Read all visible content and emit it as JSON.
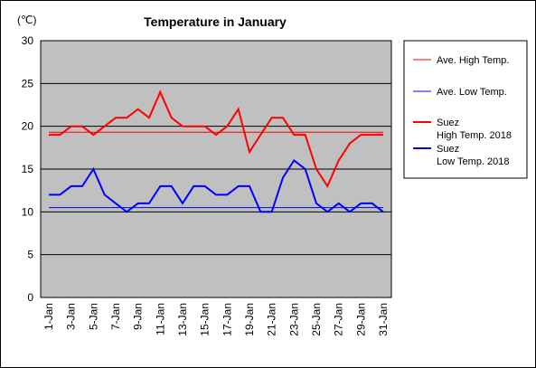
{
  "chart_data": {
    "type": "line",
    "title": "Temperature in January",
    "unit_label": "(℃)",
    "ylim": [
      0,
      30
    ],
    "yticks": [
      0,
      5,
      10,
      15,
      20,
      25,
      30
    ],
    "grid": "horizontal",
    "legend_position": "right",
    "x": [
      "1-Jan",
      "2-Jan",
      "3-Jan",
      "4-Jan",
      "5-Jan",
      "6-Jan",
      "7-Jan",
      "8-Jan",
      "9-Jan",
      "10-Jan",
      "11-Jan",
      "12-Jan",
      "13-Jan",
      "14-Jan",
      "15-Jan",
      "16-Jan",
      "17-Jan",
      "18-Jan",
      "19-Jan",
      "20-Jan",
      "21-Jan",
      "22-Jan",
      "23-Jan",
      "24-Jan",
      "25-Jan",
      "26-Jan",
      "27-Jan",
      "28-Jan",
      "29-Jan",
      "30-Jan",
      "31-Jan"
    ],
    "xtick_labels": [
      "1-Jan",
      "3-Jan",
      "5-Jan",
      "7-Jan",
      "9-Jan",
      "11-Jan",
      "13-Jan",
      "15-Jan",
      "17-Jan",
      "19-Jan",
      "21-Jan",
      "23-Jan",
      "25-Jan",
      "27-Jan",
      "29-Jan",
      "31-Jan"
    ],
    "plot_background": "#c0c0c0",
    "series": [
      {
        "name": "Ave. High Temp.",
        "style": "thin",
        "color": "#ff0000",
        "values": [
          19.3,
          19.3,
          19.3,
          19.3,
          19.3,
          19.3,
          19.3,
          19.3,
          19.3,
          19.3,
          19.3,
          19.3,
          19.3,
          19.3,
          19.3,
          19.3,
          19.3,
          19.3,
          19.3,
          19.3,
          19.3,
          19.3,
          19.3,
          19.3,
          19.3,
          19.3,
          19.3,
          19.3,
          19.3,
          19.3,
          19.3
        ]
      },
      {
        "name": "Ave. Low Temp.",
        "style": "thin",
        "color": "#0000ff",
        "values": [
          10.5,
          10.5,
          10.5,
          10.5,
          10.5,
          10.5,
          10.5,
          10.5,
          10.5,
          10.5,
          10.5,
          10.5,
          10.5,
          10.5,
          10.5,
          10.5,
          10.5,
          10.5,
          10.5,
          10.5,
          10.5,
          10.5,
          10.5,
          10.5,
          10.5,
          10.5,
          10.5,
          10.5,
          10.5,
          10.5,
          10.5
        ]
      },
      {
        "name": "Suez High Temp. 2018",
        "legend_lines": [
          "Suez",
          "High Temp. 2018"
        ],
        "style": "thick",
        "color": "#ff0000",
        "values": [
          19,
          19,
          20,
          20,
          19,
          20,
          21,
          21,
          22,
          21,
          24,
          21,
          20,
          20,
          20,
          19,
          20,
          22,
          17,
          19,
          21,
          21,
          19,
          19,
          15,
          13,
          16,
          18,
          19,
          19,
          19
        ]
      },
      {
        "name": "Suez Low Temp. 2018",
        "legend_lines": [
          "Suez",
          "Low Temp. 2018"
        ],
        "style": "thick",
        "color": "#0000ff",
        "values": [
          12,
          12,
          13,
          13,
          15,
          12,
          11,
          10,
          11,
          11,
          13,
          13,
          11,
          13,
          13,
          12,
          12,
          13,
          13,
          10,
          10,
          14,
          16,
          15,
          11,
          10,
          11,
          10,
          11,
          11,
          10
        ]
      }
    ]
  }
}
